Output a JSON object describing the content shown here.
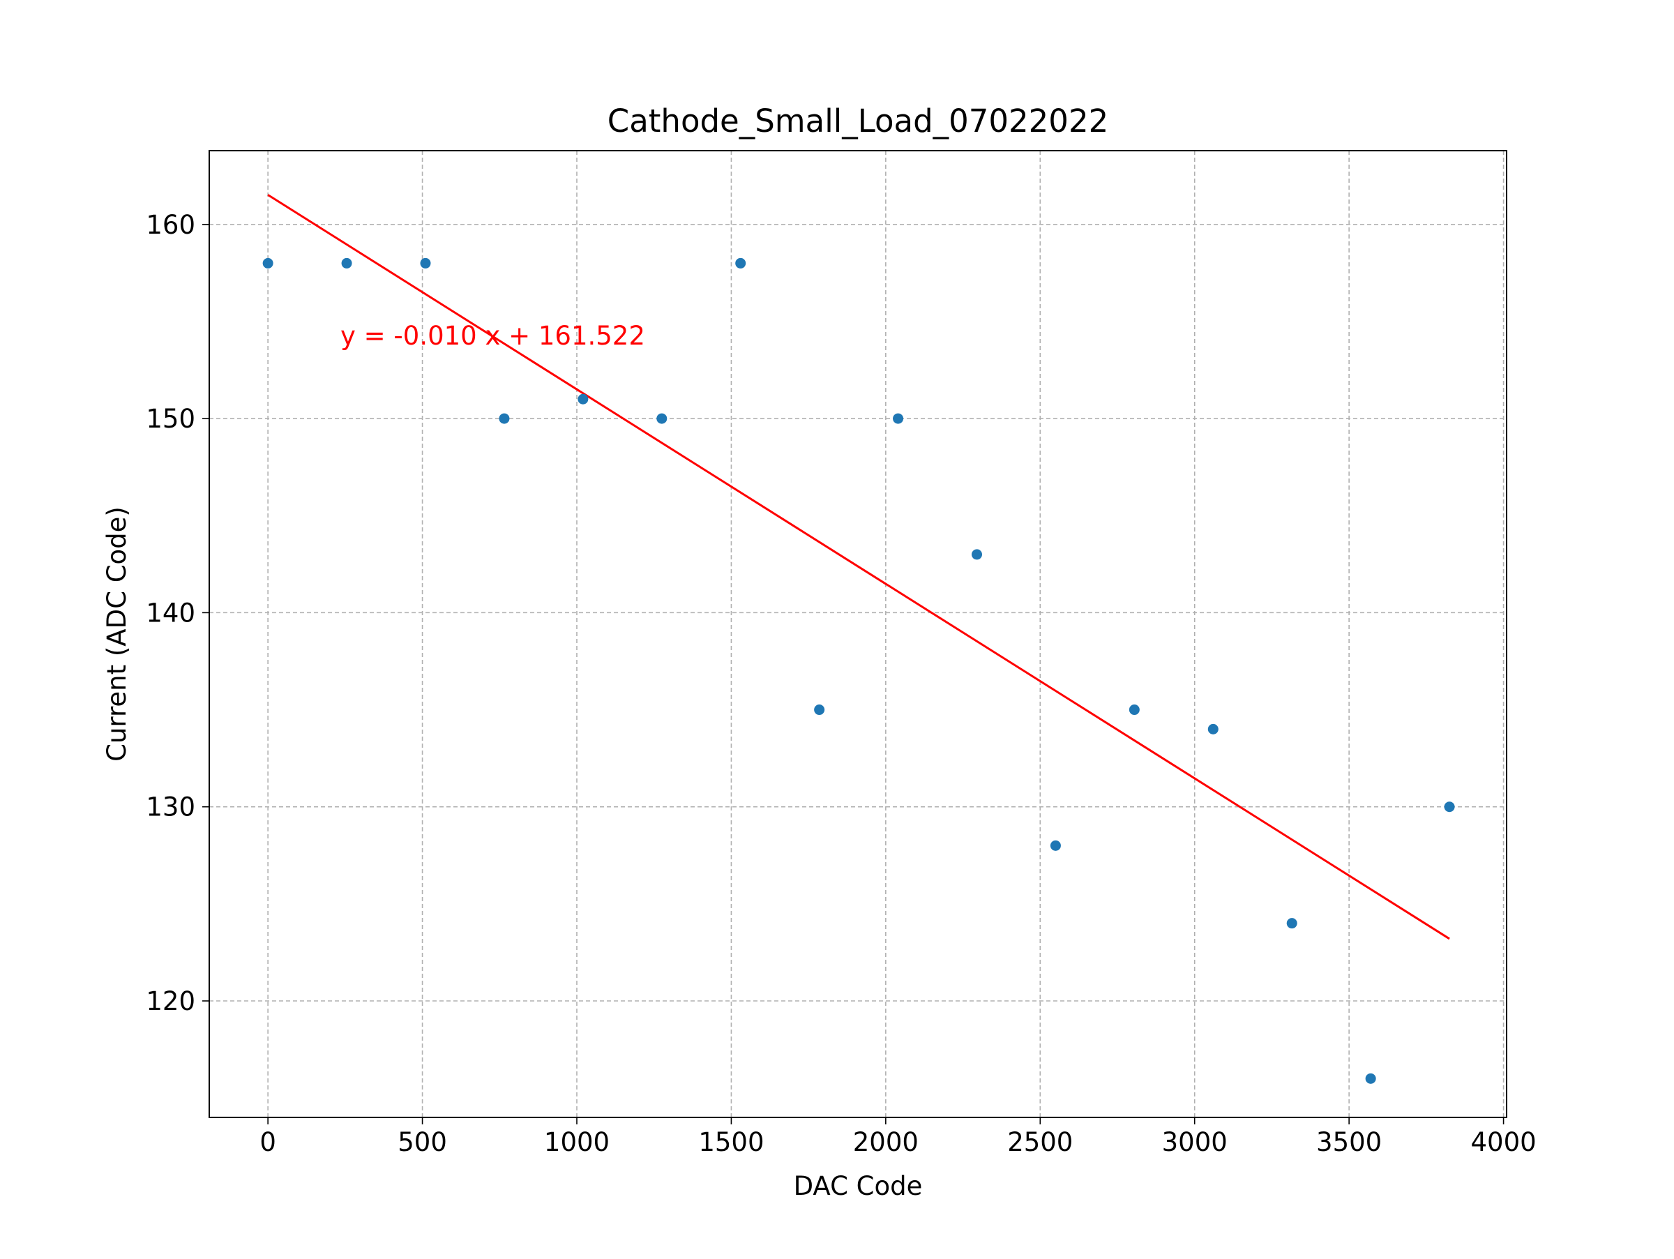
{
  "chart_data": {
    "type": "scatter",
    "title": "Cathode_Small_Load_07022022",
    "xlabel": "DAC Code",
    "ylabel": "Current (ADC Code)",
    "xlim": [
      -190,
      4010
    ],
    "ylim": [
      114.0,
      163.8
    ],
    "xticks": [
      0,
      500,
      1000,
      1500,
      2000,
      2500,
      3000,
      3500,
      4000
    ],
    "yticks": [
      120,
      130,
      140,
      150,
      160
    ],
    "xtick_labels": [
      "0",
      "500",
      "1000",
      "1500",
      "2000",
      "2500",
      "3000",
      "3500",
      "4000"
    ],
    "ytick_labels": [
      "120",
      "130",
      "140",
      "150",
      "160"
    ],
    "grid": true,
    "series": [
      {
        "color": "#1f77b4",
        "x": [
          0,
          255,
          510,
          765,
          1020,
          1275,
          1530,
          1785,
          2040,
          2295,
          2550,
          2805,
          3060,
          3315,
          3570,
          3825
        ],
        "y": [
          158,
          158,
          158,
          150,
          151,
          150,
          158,
          135,
          150,
          143,
          128,
          135,
          134,
          124,
          116,
          130
        ]
      }
    ],
    "fit": {
      "color": "#ff0000",
      "slope": -0.01,
      "intercept": 161.522,
      "x_range": [
        0,
        3825
      ],
      "y_range": [
        161.522,
        123.2
      ],
      "label": "y = -0.010 x + 161.522"
    }
  }
}
